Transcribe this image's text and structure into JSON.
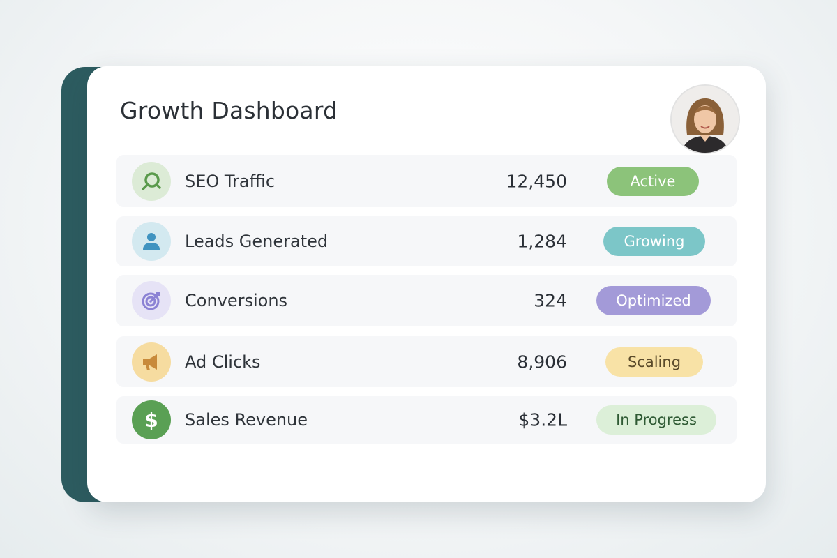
{
  "header": {
    "title": "Growth Dashboard"
  },
  "metrics": [
    {
      "label": "SEO Traffic",
      "value": "12,450",
      "status": "Active",
      "icon": "search-icon",
      "icon_bg": "#dcebd6",
      "icon_color": "#5a9a4c",
      "badge_bg": "#8cc37a",
      "badge_text": "#ffffff"
    },
    {
      "label": "Leads Generated",
      "value": "1,284",
      "status": "Growing",
      "icon": "user-icon",
      "icon_bg": "#d3e9f0",
      "icon_color": "#3f93c0",
      "badge_bg": "#7cc6c8",
      "badge_text": "#ffffff"
    },
    {
      "label": "Conversions",
      "value": "324",
      "status": "Optimized",
      "icon": "target-icon",
      "icon_bg": "#e6e3f6",
      "icon_color": "#8b82d4",
      "badge_bg": "#a39ad8",
      "badge_text": "#ffffff"
    },
    {
      "label": "Ad Clicks",
      "value": "8,906",
      "status": "Scaling",
      "icon": "megaphone-icon",
      "icon_bg": "#f6dca0",
      "icon_color": "#c88a3a",
      "badge_bg": "#f8e2a6",
      "badge_text": "#5a4a2a"
    },
    {
      "label": "Sales Revenue",
      "value": "$3.2L",
      "status": "In Progress",
      "icon": "dollar-icon",
      "icon_bg": "#5aa054",
      "icon_color": "#ffffff",
      "badge_bg": "#dcefd8",
      "badge_text": "#2f5a34"
    }
  ]
}
